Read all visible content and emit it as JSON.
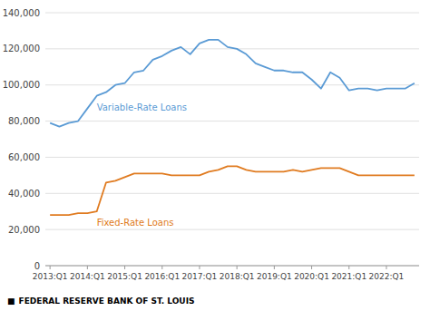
{
  "chart_data": {
    "type": "line",
    "categories": [
      "2013:Q1",
      null,
      null,
      null,
      "2014:Q1",
      null,
      null,
      null,
      "2015:Q1",
      null,
      null,
      null,
      "2016:Q1",
      null,
      null,
      null,
      "2017:Q1",
      null,
      null,
      null,
      "2018:Q1",
      null,
      null,
      null,
      "2019:Q1",
      null,
      null,
      null,
      "2020:Q1",
      null,
      null,
      null,
      "2021:Q1",
      null,
      null,
      null,
      "2022:Q1",
      null,
      null,
      null
    ],
    "series": [
      {
        "name": "Variable-Rate Loans",
        "color": "#5b9bd5",
        "values": [
          79000,
          77000,
          79000,
          80000,
          87000,
          94000,
          96000,
          100000,
          101000,
          107000,
          108000,
          114000,
          116000,
          119000,
          121000,
          117000,
          123000,
          125000,
          125000,
          121000,
          120000,
          117000,
          112000,
          110000,
          108000,
          108000,
          107000,
          107000,
          103000,
          98000,
          107000,
          104000,
          97000,
          98000,
          98000,
          97000,
          98000,
          98000,
          98000,
          101000
        ]
      },
      {
        "name": "Fixed-Rate Loans",
        "color": "#e07b20",
        "values": [
          28000,
          28000,
          28000,
          29000,
          29000,
          30000,
          46000,
          47000,
          49000,
          51000,
          51000,
          51000,
          51000,
          50000,
          50000,
          50000,
          50000,
          52000,
          53000,
          55000,
          55000,
          53000,
          52000,
          52000,
          52000,
          52000,
          53000,
          52000,
          53000,
          54000,
          54000,
          54000,
          52000,
          50000,
          50000,
          50000,
          50000,
          50000,
          50000,
          50000
        ]
      }
    ],
    "ylim": [
      0,
      140000
    ],
    "yticks": [
      0,
      {
        "value": 20000,
        "label": "20,000"
      },
      {
        "value": 40000,
        "label": "40,000"
      },
      {
        "value": 60000,
        "label": "60,000"
      },
      {
        "value": 80000,
        "label": "80,000"
      },
      {
        "value": 100000,
        "label": "100,000"
      },
      {
        "value": 120000,
        "label": "120,000"
      },
      {
        "value": 140000,
        "label": "140,000"
      }
    ],
    "grid": true,
    "annotations": [
      "■",
      "FEDERAL RESERVE BANK OF ST. LOUIS"
    ]
  }
}
